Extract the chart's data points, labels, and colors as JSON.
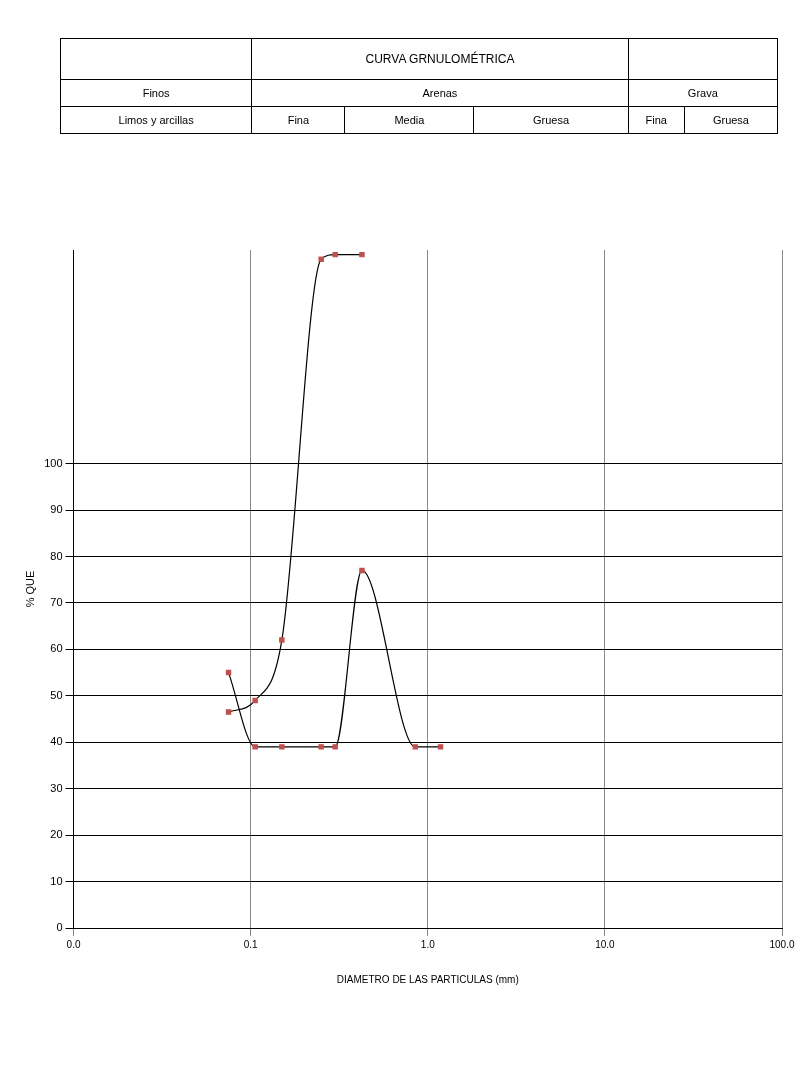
{
  "chart_data": {
    "type": "line",
    "title": "CURVA GRNULOMÉTRICA",
    "xlabel": "DIAMETRO DE LAS PARTICULAS (mm)",
    "ylabel": "% QUE",
    "annotations": [
      "Finos",
      "Arenas",
      "Grava",
      "Limos y arcillas",
      "Fina",
      "Media",
      "Gruesa",
      "Fina",
      "Gruesa"
    ],
    "series": [
      {
        "color": "#000000",
        "colors": [
          "#c0504d",
          "#c0504d",
          "#c0504d",
          "#c0504d",
          "#c0504d",
          "#c0504d"
        ],
        "x": [
          0.075,
          0.106,
          0.15,
          0.25,
          0.3,
          0.425
        ],
        "values": [
          46.5,
          49,
          62,
          144,
          145,
          145
        ]
      },
      {
        "color": "#000000",
        "colors": [
          "#c0504d",
          "#c0504d",
          "#c0504d",
          "#c0504d",
          "#c0504d",
          "#c0504d",
          "#c0504d",
          "#c0504d"
        ],
        "x": [
          0.075,
          0.106,
          0.15,
          0.25,
          0.3,
          0.425,
          0.85,
          1.18
        ],
        "values": [
          55,
          39,
          39,
          39,
          39,
          77,
          39,
          39
        ]
      }
    ],
    "log": "x",
    "xlim": [
      0.01,
      100
    ],
    "xticks": [
      {
        "value": 0.01,
        "label": "0.0"
      },
      {
        "value": 0.1,
        "label": "0.1"
      },
      {
        "value": 1,
        "label": "1.0"
      },
      {
        "value": 10,
        "label": "10.0"
      },
      {
        "value": 100,
        "label": "100.0"
      }
    ],
    "ylim": [
      0,
      146
    ],
    "yticks": [
      0,
      10,
      20,
      30,
      40,
      50,
      60,
      70,
      80,
      90,
      100
    ],
    "grid": true,
    "marker": "square",
    "legend": false
  }
}
